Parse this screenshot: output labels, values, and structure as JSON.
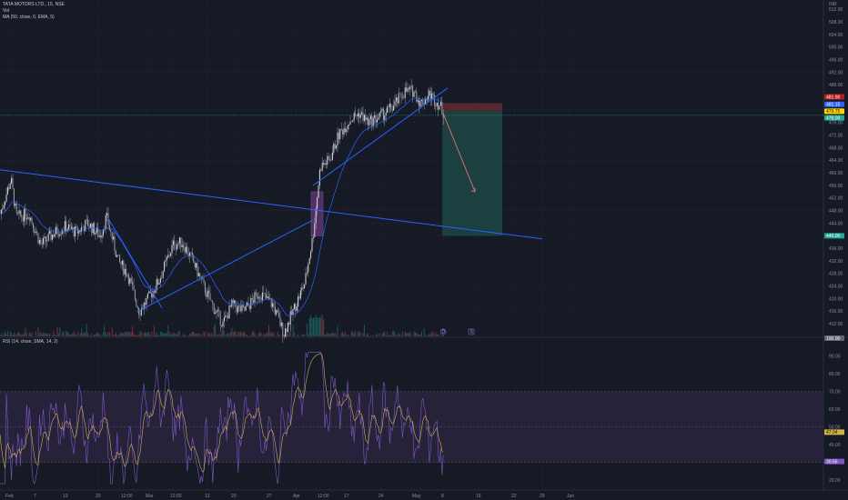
{
  "header": {
    "symbol_line": "TATA MOTORS LTD., 15, NSE",
    "vol_label": "Vol",
    "ma_label": "MA (50, close, 0, EMA, 5)",
    "currency": "INR"
  },
  "rsi_header": {
    "label": "RSI (14, close, SMA, 14, 2)"
  },
  "colors": {
    "background": "#161a25",
    "trendline": "#2962ff",
    "ma_line": "#2962ff",
    "candle_up": "#cfd3dc",
    "candle_down": "#cfd3dc",
    "target_zone": "#1e4d48",
    "stop_zone": "#5e2a32",
    "highlight_box": "#6a3a7c",
    "rsi_band": "#2a2440",
    "rsi_line": "#7e57c2",
    "rsi_ma": "#d1b34a",
    "arrow": "#e57373"
  },
  "chart_data": {
    "type": "line",
    "price_axis": {
      "ticks": [
        "512.00",
        "508.00",
        "504.00",
        "500.00",
        "496.00",
        "492.00",
        "488.00",
        "484.00",
        "480.00",
        "476.00",
        "472.00",
        "468.00",
        "464.00",
        "460.00",
        "456.00",
        "452.00",
        "448.00",
        "444.00",
        "440.00",
        "436.00",
        "432.00",
        "428.00",
        "424.00",
        "420.00",
        "416.00",
        "412.00"
      ],
      "range": [
        408,
        515
      ]
    },
    "x_axis": {
      "ticks": [
        "Feb",
        "7",
        "13",
        "20",
        "12:00",
        "Mar",
        "12:00",
        "13",
        "20",
        "27",
        "Apr",
        "12:00",
        "17",
        "24",
        "May",
        "8",
        "15",
        "22",
        "29",
        "Jun"
      ]
    },
    "price_tags": [
      {
        "label": "481.90",
        "color": "#b71c1c"
      },
      {
        "label": "481.15",
        "color": "#2962ff"
      },
      {
        "label": "479.75",
        "color": "#ffd600"
      },
      {
        "label": "478.00",
        "color": "#26a69a"
      },
      {
        "label": "440.00",
        "color": "#26a69a"
      }
    ],
    "events": [
      "D",
      "S"
    ],
    "rsi": {
      "axis_ticks": [
        "90.00",
        "80.00",
        "70.00",
        "60.00",
        "50.00",
        "40.00",
        "30.00",
        "20.00"
      ],
      "range": [
        15,
        100
      ],
      "band": [
        30,
        70
      ],
      "tags": [
        {
          "label": "100.00",
          "color": "#5f6373"
        },
        {
          "label": "47.04",
          "color": "#d1b34a"
        },
        {
          "label": "30.55",
          "color": "#7e57c2"
        }
      ]
    }
  }
}
